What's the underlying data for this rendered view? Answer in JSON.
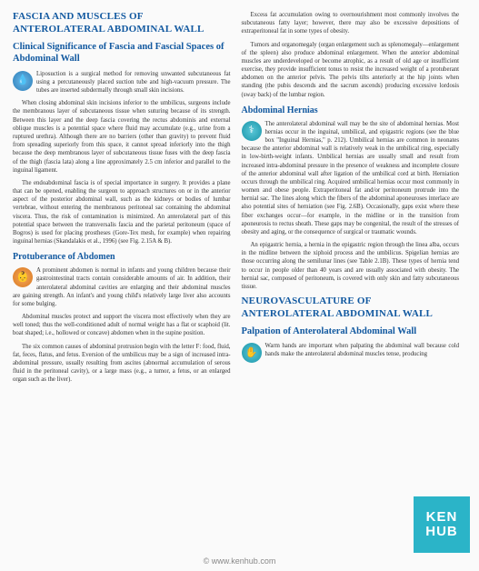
{
  "left": {
    "section1_h1": "FASCIA AND MUSCLES OF ANTEROLATERAL ABDOMINAL WALL",
    "section1_h2": "Clinical Significance of Fascia and Fascial Spaces of Abdominal Wall",
    "p1": "Liposuction is a surgical method for removing unwanted subcutaneous fat using a percutaneously placed suction tube and high-vacuum pressure. The tubes are inserted subdermally through small skin incisions.",
    "p2": "When closing abdominal skin incisions inferior to the umbilicus, surgeons include the membranous layer of subcutaneous tissue when suturing because of its strength. Between this layer and the deep fascia covering the rectus abdominis and external oblique muscles is a potential space where fluid may accumulate (e.g., urine from a ruptured urethra). Although there are no barriers (other than gravity) to prevent fluid from spreading superiorly from this space, it cannot spread inferiorly into the thigh because the deep membranous layer of subcutaneous tissue fuses with the deep fascia of the thigh (fascia lata) along a line approximately 2.5 cm inferior and parallel to the inguinal ligament.",
    "p3": "The endoabdominal fascia is of special importance in surgery. It provides a plane that can be opened, enabling the surgeon to approach structures on or in the anterior aspect of the posterior abdominal wall, such as the kidneys or bodies of lumbar vertebrae, without entering the membranous peritoneal sac containing the abdominal viscera. Thus, the risk of contamination is minimized. An anterolateral part of this potential space between the transversalis fascia and the parietal peritoneum (space of Bogros) is used for placing prostheses (Gore-Tex mesh, for example) when repairing inguinal hernias (Skandalakis et al., 1996) (see Fig. 2.15A & B).",
    "section2_h3": "Protuberance of Abdomen",
    "p4": "A prominent abdomen is normal in infants and young children because their gastrointestinal tracts contain considerable amounts of air. In addition, their anterolateral abdominal cavities are enlarging and their abdominal muscles are gaining strength. An infant's and young child's relatively large liver also accounts for some bulging.",
    "p5": "Abdominal muscles protect and support the viscera most effectively when they are well toned; thus the well-conditioned adult of normal weight has a flat or scaphoid (lit. boat shaped; i.e., hollowed or concave) abdomen when in the supine position.",
    "p6": "The six common causes of abdominal protrusion begin with the letter F: food, fluid, fat, feces, flatus, and fetus. Eversion of the umbilicus may be a sign of increased intra-abdominal pressure, usually resulting from ascites (abnormal accumulation of serous fluid in the peritoneal cavity), or a large mass (e.g., a tumor, a fetus, or an enlarged organ such as the liver)."
  },
  "right": {
    "p1": "Excess fat accumulation owing to overnourishment most commonly involves the subcutaneous fatty layer; however, there may also be excessive depositions of extraperitoneal fat in some types of obesity.",
    "p2": "Tumors and organomegaly (organ enlargement such as splenomegaly—enlargement of the spleen) also produce abdominal enlargement. When the anterior abdominal muscles are underdeveloped or become atrophic, as a result of old age or insufficient exercise, they provide insufficient tonus to resist the increased weight of a protuberant abdomen on the anterior pelvis. The pelvis tilts anteriorly at the hip joints when standing (the pubis descends and the sacrum ascends) producing excessive lordosis (sway back) of the lumbar region.",
    "section1_h3": "Abdominal Hernias",
    "p3": "The anterolateral abdominal wall may be the site of abdominal hernias. Most hernias occur in the inguinal, umbilical, and epigastric regions (see the blue box \"Inguinal Hernias,\" p. 212). Umbilical hernias are common in neonates because the anterior abdominal wall is relatively weak in the umbilical ring, especially in low-birth-weight infants. Umbilical hernias are usually small and result from increased intra-abdominal pressure in the presence of weakness and incomplete closure of the anterior abdominal wall after ligation of the umbilical cord at birth. Herniation occurs through the umbilical ring. Acquired umbilical hernias occur most commonly in women and obese people. Extraperitoneal fat and/or peritoneum protrude into the hernial sac. The lines along which the fibers of the abdominal aponeuroses interlace are also potential sites of herniation (see Fig. 2.6B). Occasionally, gaps exist where these fiber exchanges occur—for example, in the midline or in the transition from aponeurosis to rectus sheath. These gaps may be congenital, the result of the stresses of obesity and aging, or the consequence of surgical or traumatic wounds.",
    "p4": "An epigastric hernia, a hernia in the epigastric region through the linea alba, occurs in the midline between the xiphoid process and the umbilicus. Spigelian hernias are those occurring along the semilunar lines (see Table 2.1B). These types of hernia tend to occur in people older than 40 years and are usually associated with obesity. The hernial sac, composed of peritoneum, is covered with only skin and fatty subcutaneous tissue.",
    "section2_h1": "NEUROVASCULATURE OF ANTEROLATERAL ABDOMINAL WALL",
    "section2_h2": "Palpation of Anterolateral Abdominal Wall",
    "p5": "Warm hands are important when palpating the abdominal wall because cold hands make the anterolateral abdominal muscles tense, producing"
  },
  "footer_text": "© www.kenhub.com",
  "badge_text": "KEN HUB",
  "colors": {
    "heading": "#1259a0",
    "body": "#333333",
    "badge": "#2bb4c8",
    "footer": "#888888"
  }
}
